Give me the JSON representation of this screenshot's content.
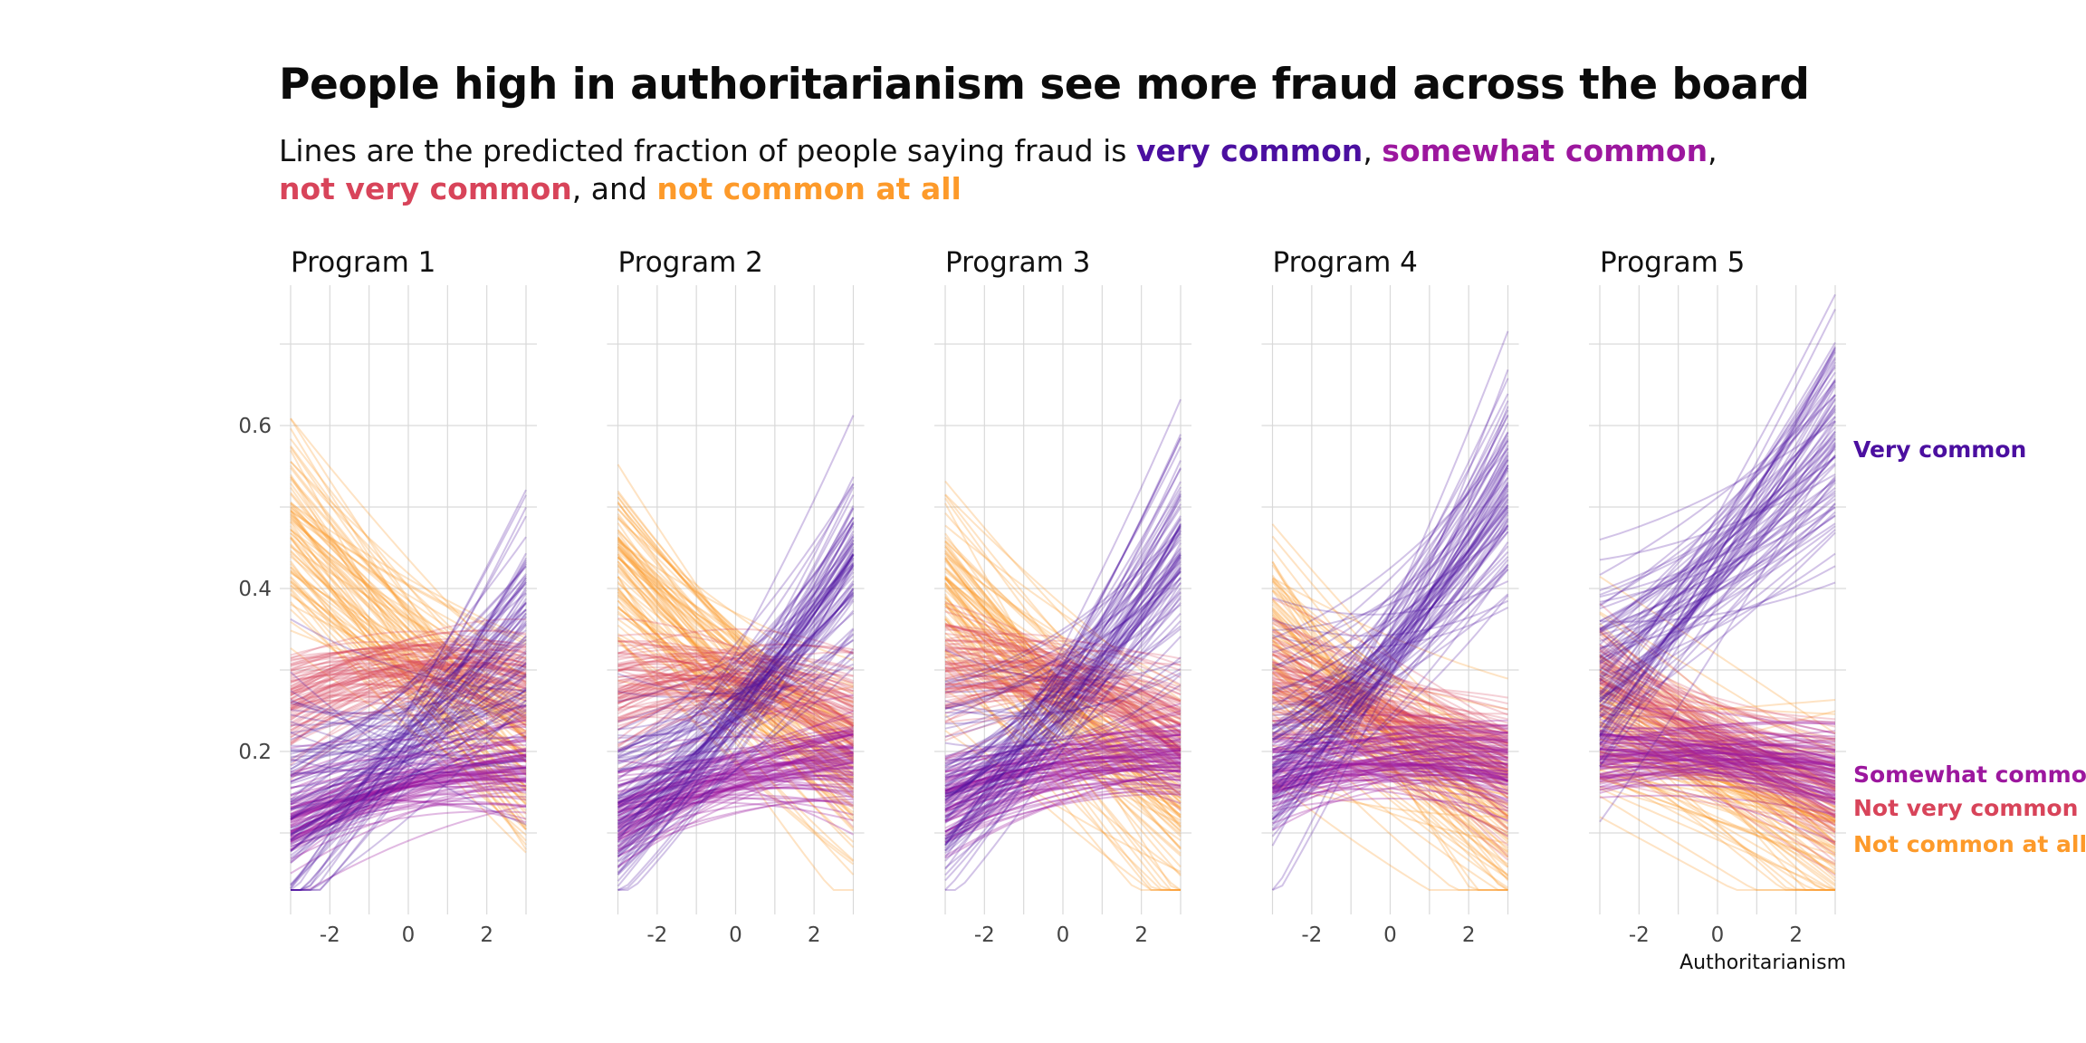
{
  "title": "People high in authoritarianism see more fraud across the board",
  "subtitle": {
    "prefix": "Lines are the predicted fraction of people saying fraud is ",
    "sep1": ", ",
    "sep2": ", ",
    "sep3": ", and ",
    "very_common": "very common",
    "somewhat_common": "somewhat common",
    "not_very_common": "not very common",
    "not_common_at_all": "not common at all"
  },
  "colors": {
    "very_common": "#4b0fa0",
    "somewhat_common": "#9c179e",
    "not_very_common": "#d8445a",
    "not_common_at_all": "#fd9a2a",
    "grid": "#d9d9d9"
  },
  "chart_data": {
    "type": "line",
    "rendering": "ensemble of posterior predicted lines (many semi-transparent draws per category)",
    "xlabel": "Authoritarianism",
    "ylabel": "",
    "xlim": [
      -3,
      3
    ],
    "ylim": [
      0,
      0.75
    ],
    "x_ticks": [
      -2,
      0,
      2
    ],
    "x_tick_labels": [
      "-2",
      "0",
      "2"
    ],
    "y_ticks": [
      0.2,
      0.4,
      0.6
    ],
    "y_tick_labels": [
      "0.2",
      "0.4",
      "0.6"
    ],
    "legend": [
      {
        "key": "very_common",
        "label": "Very common",
        "y_end": 0.57
      },
      {
        "key": "somewhat_common",
        "label": "Somewhat common",
        "y_end": 0.18
      },
      {
        "key": "not_very_common",
        "label": "Not very common",
        "y_end": 0.14
      },
      {
        "key": "not_common_at_all",
        "label": "Not common at all",
        "y_end": 0.095
      }
    ],
    "facets": [
      {
        "title": "Program 1",
        "series": [
          {
            "key": "very_common",
            "x": [
              -3,
              0,
              3
            ],
            "y": [
              0.13,
              0.22,
              0.35
            ]
          },
          {
            "key": "somewhat_common",
            "x": [
              -3,
              0,
              3
            ],
            "y": [
              0.11,
              0.16,
              0.18
            ]
          },
          {
            "key": "not_very_common",
            "x": [
              -3,
              0,
              3
            ],
            "y": [
              0.26,
              0.3,
              0.28
            ]
          },
          {
            "key": "not_common_at_all",
            "x": [
              -3,
              0,
              3
            ],
            "y": [
              0.48,
              0.33,
              0.2
            ]
          }
        ]
      },
      {
        "title": "Program 2",
        "series": [
          {
            "key": "very_common",
            "x": [
              -3,
              0,
              3
            ],
            "y": [
              0.14,
              0.25,
              0.42
            ]
          },
          {
            "key": "somewhat_common",
            "x": [
              -3,
              0,
              3
            ],
            "y": [
              0.12,
              0.17,
              0.19
            ]
          },
          {
            "key": "not_very_common",
            "x": [
              -3,
              0,
              3
            ],
            "y": [
              0.28,
              0.29,
              0.24
            ]
          },
          {
            "key": "not_common_at_all",
            "x": [
              -3,
              0,
              3
            ],
            "y": [
              0.44,
              0.29,
              0.17
            ]
          }
        ]
      },
      {
        "title": "Program 3",
        "series": [
          {
            "key": "very_common",
            "x": [
              -3,
              0,
              3
            ],
            "y": [
              0.15,
              0.27,
              0.45
            ]
          },
          {
            "key": "somewhat_common",
            "x": [
              -3,
              0,
              3
            ],
            "y": [
              0.14,
              0.18,
              0.19
            ]
          },
          {
            "key": "not_very_common",
            "x": [
              -3,
              0,
              3
            ],
            "y": [
              0.29,
              0.28,
              0.22
            ]
          },
          {
            "key": "not_common_at_all",
            "x": [
              -3,
              0,
              3
            ],
            "y": [
              0.4,
              0.26,
              0.14
            ]
          }
        ]
      },
      {
        "title": "Program 4",
        "series": [
          {
            "key": "very_common",
            "x": [
              -3,
              0,
              3
            ],
            "y": [
              0.2,
              0.33,
              0.52
            ]
          },
          {
            "key": "somewhat_common",
            "x": [
              -3,
              0,
              3
            ],
            "y": [
              0.17,
              0.19,
              0.18
            ]
          },
          {
            "key": "not_very_common",
            "x": [
              -3,
              0,
              3
            ],
            "y": [
              0.29,
              0.25,
              0.19
            ]
          },
          {
            "key": "not_common_at_all",
            "x": [
              -3,
              0,
              3
            ],
            "y": [
              0.33,
              0.21,
              0.11
            ]
          }
        ]
      },
      {
        "title": "Program 5",
        "series": [
          {
            "key": "very_common",
            "x": [
              -3,
              0,
              3
            ],
            "y": [
              0.3,
              0.42,
              0.57
            ]
          },
          {
            "key": "somewhat_common",
            "x": [
              -3,
              0,
              3
            ],
            "y": [
              0.19,
              0.19,
              0.17
            ]
          },
          {
            "key": "not_very_common",
            "x": [
              -3,
              0,
              3
            ],
            "y": [
              0.28,
              0.21,
              0.15
            ]
          },
          {
            "key": "not_common_at_all",
            "x": [
              -3,
              0,
              3
            ],
            "y": [
              0.25,
              0.17,
              0.09
            ]
          }
        ]
      }
    ]
  }
}
